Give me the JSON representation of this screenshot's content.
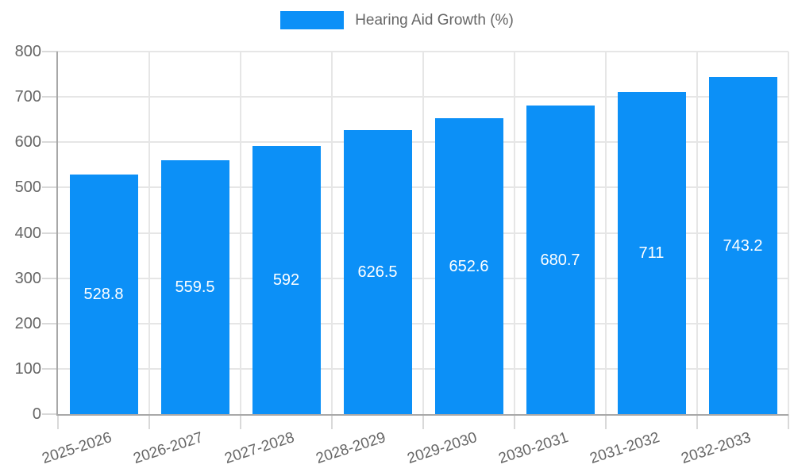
{
  "chart_data": {
    "type": "bar",
    "title": "Hearing Aid Growth (%)",
    "categories": [
      "2025-2026",
      "2026-2027",
      "2027-2028",
      "2028-2029",
      "2029-2030",
      "2030-2031",
      "2031-2032",
      "2032-2033"
    ],
    "values": [
      528.8,
      559.5,
      592,
      626.5,
      652.6,
      680.7,
      711,
      743.2
    ],
    "value_labels": [
      "528.8",
      "559.5",
      "592",
      "626.5",
      "652.6",
      "680.7",
      "711",
      "743.2"
    ],
    "xlabel": "",
    "ylabel": "",
    "ylim": [
      0,
      800
    ],
    "ytick_step": 100,
    "grid": true,
    "legend_position": "top",
    "colors": {
      "bar": "#0c90f7",
      "value_label": "#ffffff",
      "axis_text": "#666666",
      "grid_line": "#e6e6e6",
      "tick_line": "#d9d9d9",
      "axis_line": "#a8a8a8"
    }
  }
}
